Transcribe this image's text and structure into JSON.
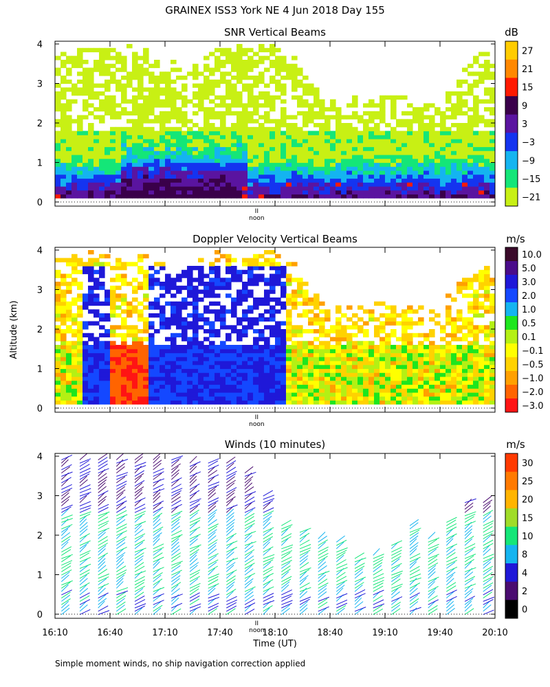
{
  "header": {
    "title": "GRAINEX ISS3 York NE    4 Jun 2018 Day 155"
  },
  "panels": [
    {
      "id": "snr",
      "title": "SNR Vertical Beams",
      "unit": "dB",
      "colorbar": {
        "labels": [
          "27",
          "21",
          "15",
          "9",
          "3",
          "−3",
          "−9",
          "−15",
          "−21"
        ],
        "colors": [
          "#ffcc00",
          "#ff8800",
          "#ff1a00",
          "#3a004a",
          "#5a14a0",
          "#1434f0",
          "#14b4f0",
          "#14e678",
          "#c8f014"
        ]
      }
    },
    {
      "id": "doppler",
      "title": "Doppler Velocity Vertical Beams",
      "unit": "m/s",
      "colorbar": {
        "labels": [
          "10.0",
          "5.0",
          "3.0",
          "2.0",
          "1.0",
          "0.5",
          "0.1",
          "−0.1",
          "−0.5",
          "−1.0",
          "−2.0",
          "−3.0"
        ],
        "colors": [
          "#3a0a2a",
          "#4a0c8a",
          "#1f18d8",
          "#1448ff",
          "#14b4f0",
          "#1ee61e",
          "#b4f014",
          "#ffff00",
          "#ffd200",
          "#ffa000",
          "#ff6400",
          "#ff1414"
        ]
      }
    },
    {
      "id": "winds",
      "title": "Winds (10 minutes)",
      "unit": "m/s",
      "colorbar": {
        "labels": [
          "30",
          "25",
          "20",
          "15",
          "10",
          "8",
          "4",
          "2",
          "0"
        ],
        "colors": [
          "#ff3a00",
          "#ff7a00",
          "#ffb400",
          "#a0dc28",
          "#14e678",
          "#14b4f0",
          "#1f18d8",
          "#4a0c70",
          "#000000"
        ]
      }
    }
  ],
  "axes": {
    "ylabel": "Altitude (km)",
    "y_ticks": [
      "0",
      "1",
      "2",
      "3",
      "4"
    ],
    "x_ticks": [
      "16:10",
      "16:40",
      "17:10",
      "17:40",
      "18:10",
      "18:40",
      "19:10",
      "19:40",
      "20:10"
    ],
    "xlabel": "Time (UT)",
    "noon_label": "noon",
    "noon_marker": "II"
  },
  "footer": {
    "note": "Simple moment winds, no ship navigation correction applied"
  },
  "chart_data": [
    {
      "type": "heatmap",
      "title": "SNR Vertical Beams",
      "xlabel": "",
      "ylabel": "Altitude (km)",
      "unit": "dB",
      "x_range": [
        "16:10",
        "20:10"
      ],
      "ylim": [
        0,
        4
      ],
      "color_levels": [
        -21,
        -15,
        -9,
        -3,
        3,
        9,
        15,
        21,
        27
      ],
      "profiles": [
        {
          "time": "16:20",
          "max_alt_km": 3.7
        },
        {
          "time": "16:40",
          "max_alt_km": 3.9
        },
        {
          "time": "17:00",
          "max_alt_km": 3.7
        },
        {
          "time": "17:20",
          "max_alt_km": 3.2
        },
        {
          "time": "17:40",
          "max_alt_km": 3.9
        },
        {
          "time": "18:10",
          "max_alt_km": 3.9
        },
        {
          "time": "18:40",
          "max_alt_km": 2.4
        },
        {
          "time": "19:10",
          "max_alt_km": 2.6
        },
        {
          "time": "19:40",
          "max_alt_km": 2.3
        },
        {
          "time": "20:00",
          "max_alt_km": 3.5
        }
      ]
    },
    {
      "type": "heatmap",
      "title": "Doppler Velocity Vertical Beams",
      "ylabel": "Altitude (km)",
      "unit": "m/s",
      "x_range": [
        "16:10",
        "20:10"
      ],
      "ylim": [
        0,
        4
      ],
      "color_levels": [
        -3.0,
        -2.0,
        -1.0,
        -0.5,
        -0.1,
        0.1,
        0.5,
        1.0,
        2.0,
        3.0,
        5.0,
        10.0
      ]
    },
    {
      "type": "scatter",
      "title": "Winds (10 minutes)",
      "xlabel": "Time (UT)",
      "ylabel": "Altitude (km)",
      "unit": "m/s",
      "x_range": [
        "16:10",
        "20:10"
      ],
      "ylim": [
        0,
        4
      ],
      "color_levels": [
        0,
        2,
        4,
        8,
        10,
        15,
        20,
        25,
        30
      ],
      "profiles": [
        {
          "time": "16:15",
          "top_km": 4.0
        },
        {
          "time": "16:25",
          "top_km": 4.0
        },
        {
          "time": "16:35",
          "top_km": 4.0
        },
        {
          "time": "16:45",
          "top_km": 4.0
        },
        {
          "time": "16:55",
          "top_km": 4.0
        },
        {
          "time": "17:05",
          "top_km": 4.0
        },
        {
          "time": "17:15",
          "top_km": 4.0
        },
        {
          "time": "17:25",
          "top_km": 3.9
        },
        {
          "time": "17:35",
          "top_km": 3.9
        },
        {
          "time": "17:45",
          "top_km": 3.9
        },
        {
          "time": "17:55",
          "top_km": 3.7
        },
        {
          "time": "18:05",
          "top_km": 3.1
        },
        {
          "time": "18:15",
          "top_km": 2.3
        },
        {
          "time": "18:25",
          "top_km": 2.2
        },
        {
          "time": "18:35",
          "top_km": 2.0
        },
        {
          "time": "18:45",
          "top_km": 1.9
        },
        {
          "time": "18:55",
          "top_km": 1.5
        },
        {
          "time": "19:05",
          "top_km": 1.6
        },
        {
          "time": "19:15",
          "top_km": 1.8
        },
        {
          "time": "19:25",
          "top_km": 2.3
        },
        {
          "time": "19:35",
          "top_km": 2.0
        },
        {
          "time": "19:45",
          "top_km": 2.4
        },
        {
          "time": "19:55",
          "top_km": 2.9
        },
        {
          "time": "20:05",
          "top_km": 2.9
        }
      ]
    }
  ]
}
